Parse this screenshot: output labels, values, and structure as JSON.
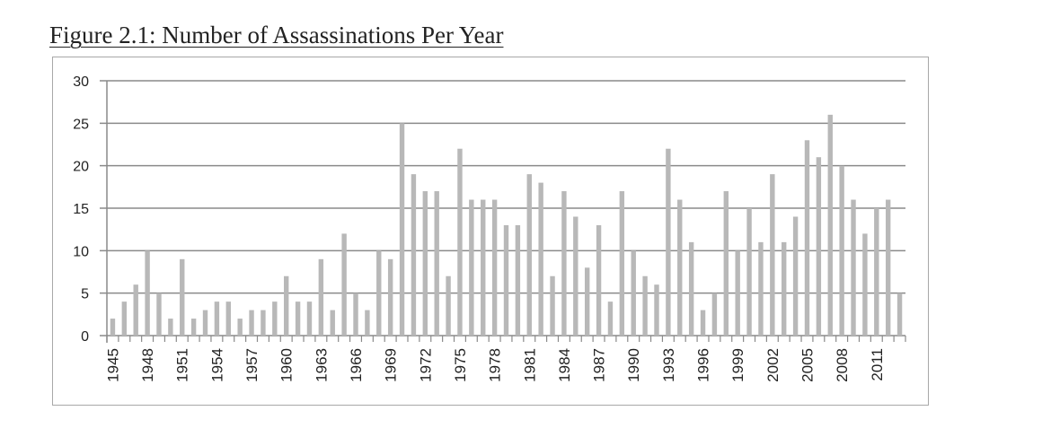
{
  "chart_data": {
    "type": "bar",
    "title": "Figure 2.1: Number of Assassinations Per Year",
    "xlabel": "",
    "ylabel": "",
    "ylim": [
      0,
      30
    ],
    "yticks": [
      0,
      5,
      10,
      15,
      20,
      25,
      30
    ],
    "grid": true,
    "bar_color": "#b8b8b8",
    "categories": [
      1945,
      1946,
      1947,
      1948,
      1949,
      1950,
      1951,
      1952,
      1953,
      1954,
      1955,
      1956,
      1957,
      1958,
      1959,
      1960,
      1961,
      1962,
      1963,
      1964,
      1965,
      1966,
      1967,
      1968,
      1969,
      1970,
      1971,
      1972,
      1973,
      1974,
      1975,
      1976,
      1977,
      1978,
      1979,
      1980,
      1981,
      1982,
      1983,
      1984,
      1985,
      1986,
      1987,
      1988,
      1989,
      1990,
      1991,
      1992,
      1993,
      1994,
      1995,
      1996,
      1997,
      1998,
      1999,
      2000,
      2001,
      2002,
      2003,
      2004,
      2005,
      2006,
      2007,
      2008,
      2009,
      2010,
      2011,
      2012,
      2013
    ],
    "values": [
      2,
      4,
      6,
      10,
      5,
      2,
      9,
      2,
      3,
      4,
      4,
      2,
      3,
      3,
      4,
      7,
      4,
      4,
      9,
      3,
      12,
      5,
      3,
      10,
      9,
      25,
      19,
      17,
      17,
      7,
      22,
      16,
      16,
      16,
      13,
      13,
      19,
      18,
      7,
      17,
      14,
      8,
      13,
      4,
      17,
      10,
      7,
      6,
      22,
      16,
      11,
      3,
      5,
      17,
      10,
      15,
      11,
      19,
      11,
      14,
      23,
      21,
      26,
      20,
      16,
      12,
      15,
      16,
      5
    ],
    "xtick_labels": [
      "1945",
      "1948",
      "1951",
      "1954",
      "1957",
      "1960",
      "1963",
      "1966",
      "1969",
      "1972",
      "1975",
      "1978",
      "1981",
      "1984",
      "1987",
      "1990",
      "1993",
      "1996",
      "1999",
      "2002",
      "2005",
      "2008",
      "2011"
    ]
  }
}
